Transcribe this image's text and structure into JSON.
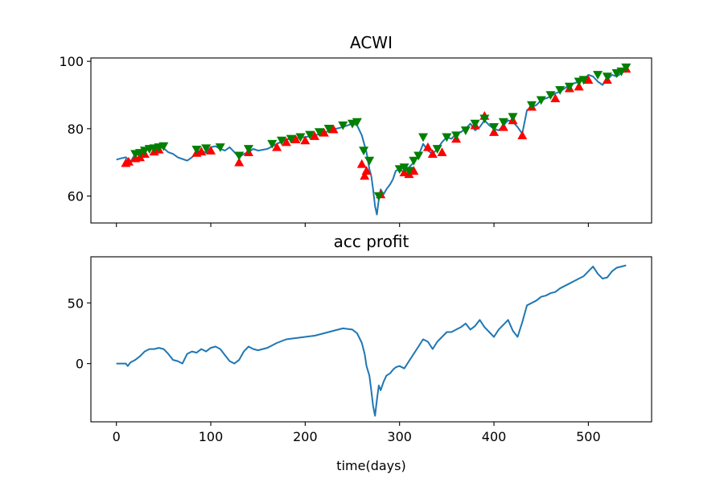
{
  "chart_data": [
    {
      "type": "line",
      "title": "ACWI",
      "xlabel": "",
      "ylabel": "",
      "xlim": [
        -27,
        567
      ],
      "ylim": [
        52,
        101
      ],
      "xticks": [
        0,
        100,
        200,
        300,
        400,
        500
      ],
      "xtick_labels_visible": false,
      "yticks": [
        60,
        80,
        100
      ],
      "grid": false,
      "series": [
        {
          "marker": "none",
          "color": "#1f77b4",
          "x": [
            0,
            5,
            10,
            15,
            20,
            25,
            30,
            35,
            40,
            45,
            50,
            55,
            60,
            65,
            70,
            75,
            80,
            85,
            90,
            95,
            100,
            105,
            110,
            115,
            120,
            125,
            130,
            135,
            140,
            145,
            150,
            160,
            170,
            180,
            190,
            200,
            210,
            220,
            230,
            240,
            250,
            255,
            260,
            263,
            265,
            268,
            270,
            272,
            274,
            276,
            278,
            280,
            283,
            286,
            290,
            293,
            296,
            300,
            305,
            310,
            315,
            320,
            325,
            330,
            335,
            340,
            345,
            350,
            355,
            360,
            365,
            370,
            375,
            380,
            385,
            390,
            395,
            400,
            405,
            410,
            415,
            420,
            425,
            430,
            435,
            440,
            445,
            450,
            455,
            460,
            465,
            470,
            475,
            480,
            485,
            490,
            495,
            500,
            505,
            510,
            515,
            520,
            525,
            530,
            535,
            540
          ],
          "y": [
            70.8,
            71.2,
            71.5,
            70.2,
            72.5,
            72.0,
            73.5,
            74.0,
            73.8,
            74.5,
            74.2,
            73.0,
            72.5,
            71.5,
            71.0,
            70.5,
            71.5,
            73.0,
            73.5,
            72.8,
            74.5,
            74.8,
            74.0,
            73.5,
            74.5,
            73.0,
            71.5,
            72.5,
            73.0,
            74.0,
            73.5,
            74.0,
            75.5,
            76.8,
            77.2,
            77.5,
            78.0,
            78.8,
            79.8,
            80.5,
            81.5,
            81.0,
            78.0,
            75.0,
            73.0,
            68.0,
            66.0,
            62.0,
            57.0,
            54.5,
            59.0,
            62.0,
            60.5,
            62.0,
            63.5,
            65.0,
            67.5,
            68.0,
            67.0,
            68.5,
            70.0,
            72.0,
            75.5,
            73.5,
            72.5,
            74.0,
            76.0,
            77.5,
            77.0,
            78.5,
            79.0,
            80.0,
            81.5,
            79.5,
            80.5,
            82.5,
            81.0,
            80.0,
            79.5,
            81.0,
            82.5,
            82.0,
            80.5,
            78.5,
            85.5,
            86.5,
            87.0,
            88.5,
            89.0,
            89.5,
            90.5,
            91.0,
            92.0,
            93.0,
            93.5,
            94.0,
            94.5,
            96.0,
            95.5,
            94.0,
            93.0,
            94.5,
            96.0,
            95.5,
            96.5,
            97.5
          ]
        },
        {
          "marker": "triangle-up",
          "color": "#ff0000",
          "x": [
            10,
            13,
            20,
            25,
            30,
            40,
            45,
            85,
            90,
            100,
            130,
            140,
            170,
            180,
            190,
            200,
            210,
            220,
            230,
            260,
            263,
            265,
            280,
            305,
            310,
            315,
            330,
            335,
            345,
            360,
            380,
            390,
            400,
            410,
            420,
            430,
            440,
            465,
            480,
            490,
            500,
            520,
            540
          ],
          "y": [
            69.8,
            70.2,
            71.2,
            71.5,
            72.5,
            73.2,
            73.8,
            72.8,
            73.2,
            73.5,
            70.0,
            73.0,
            74.5,
            76.0,
            76.8,
            76.5,
            77.8,
            78.8,
            79.8,
            69.5,
            66.0,
            67.5,
            60.5,
            67.0,
            66.5,
            67.5,
            74.5,
            72.5,
            73.0,
            77.0,
            81.0,
            83.8,
            79.0,
            80.5,
            82.5,
            78.0,
            86.5,
            89.0,
            92.0,
            92.5,
            94.5,
            94.5,
            97.8
          ]
        },
        {
          "marker": "triangle-down",
          "color": "#008000",
          "x": [
            20,
            25,
            30,
            35,
            40,
            45,
            50,
            85,
            95,
            110,
            130,
            140,
            165,
            175,
            185,
            195,
            205,
            215,
            225,
            240,
            250,
            255,
            262,
            268,
            278,
            300,
            305,
            310,
            315,
            320,
            325,
            340,
            350,
            360,
            370,
            380,
            390,
            400,
            410,
            420,
            440,
            450,
            460,
            470,
            480,
            490,
            495,
            510,
            520,
            530,
            535,
            540
          ],
          "y": [
            72.5,
            72.8,
            73.5,
            74.0,
            74.2,
            74.5,
            74.8,
            73.8,
            74.2,
            74.5,
            72.0,
            74.0,
            75.5,
            76.5,
            77.0,
            77.5,
            78.2,
            79.0,
            80.0,
            81.0,
            81.5,
            82.0,
            73.5,
            70.5,
            60.0,
            68.0,
            68.5,
            67.5,
            70.5,
            72.0,
            77.5,
            74.0,
            77.5,
            78.0,
            79.5,
            81.5,
            83.0,
            80.5,
            82.0,
            83.5,
            87.0,
            88.5,
            90.0,
            91.5,
            92.5,
            94.0,
            94.5,
            96.0,
            95.5,
            96.5,
            97.0,
            98.2
          ]
        }
      ]
    },
    {
      "type": "line",
      "title": "acc profit",
      "xlabel": "time(days)",
      "ylabel": "",
      "xlim": [
        -27,
        567
      ],
      "ylim": [
        -48,
        88
      ],
      "xticks": [
        0,
        100,
        200,
        300,
        400,
        500
      ],
      "yticks": [
        0,
        50
      ],
      "grid": false,
      "series": [
        {
          "marker": "none",
          "color": "#1f77b4",
          "x": [
            0,
            5,
            10,
            12,
            15,
            20,
            25,
            30,
            35,
            40,
            45,
            50,
            55,
            60,
            65,
            70,
            75,
            80,
            85,
            90,
            95,
            100,
            105,
            110,
            115,
            120,
            125,
            130,
            135,
            140,
            145,
            150,
            160,
            170,
            180,
            190,
            200,
            210,
            220,
            230,
            240,
            250,
            255,
            260,
            263,
            265,
            268,
            270,
            272,
            274,
            276,
            278,
            280,
            283,
            286,
            290,
            293,
            296,
            300,
            305,
            310,
            315,
            320,
            325,
            330,
            335,
            340,
            345,
            350,
            355,
            360,
            365,
            370,
            375,
            380,
            385,
            390,
            395,
            400,
            405,
            410,
            415,
            420,
            425,
            430,
            435,
            440,
            445,
            450,
            455,
            460,
            465,
            470,
            475,
            480,
            485,
            490,
            495,
            500,
            505,
            510,
            515,
            520,
            525,
            530,
            535,
            540
          ],
          "y": [
            0,
            0,
            0,
            -2,
            1,
            3,
            6,
            10,
            12,
            12,
            13,
            12,
            8,
            3,
            2,
            0,
            8,
            10,
            9,
            12,
            10,
            13,
            14,
            12,
            7,
            2,
            0,
            3,
            10,
            14,
            12,
            11,
            13,
            17,
            20,
            21,
            22,
            23,
            25,
            27,
            29,
            28,
            25,
            17,
            8,
            -2,
            -10,
            -22,
            -35,
            -43,
            -30,
            -18,
            -22,
            -15,
            -10,
            -8,
            -5,
            -3,
            -2,
            -4,
            2,
            8,
            14,
            20,
            18,
            12,
            18,
            22,
            26,
            26,
            28,
            30,
            33,
            28,
            31,
            36,
            30,
            26,
            22,
            28,
            32,
            36,
            27,
            22,
            34,
            48,
            50,
            52,
            55,
            56,
            58,
            59,
            62,
            64,
            66,
            68,
            70,
            72,
            76,
            80,
            74,
            70,
            71,
            76,
            79,
            80,
            81
          ]
        }
      ]
    }
  ]
}
